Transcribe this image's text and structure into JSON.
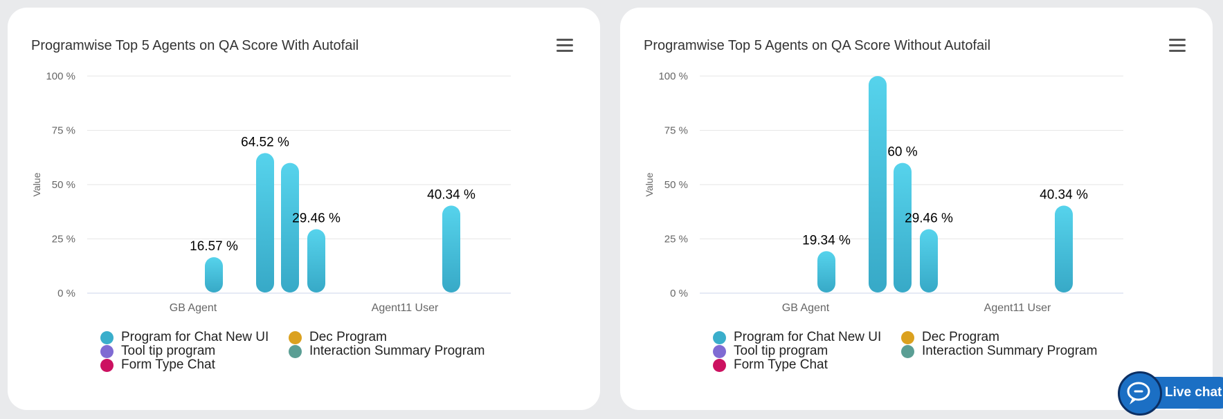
{
  "colors": {
    "bar_top": "#56d3ec",
    "bar_bottom": "#37a9c7",
    "grid": "#e6e6e6",
    "axis": "#ccd6eb"
  },
  "legend": [
    {
      "label": "Program for Chat New UI",
      "color": "#3aaecb"
    },
    {
      "label": "Dec Program",
      "color": "#dba11f"
    },
    {
      "label": "Tool tip program",
      "color": "#7f6bd3"
    },
    {
      "label": "Interaction Summary Program",
      "color": "#5a9e94"
    },
    {
      "label": "Form Type Chat",
      "color": "#cc1160"
    }
  ],
  "chart_data": [
    {
      "type": "bar",
      "title": "Programwise Top 5 Agents on QA Score With Autofail",
      "ylabel": "Value",
      "ylim": [
        0,
        100
      ],
      "yticks": [
        0,
        25,
        50,
        75,
        100
      ],
      "ytick_labels": [
        "0 %",
        "25 %",
        "50 %",
        "75 %",
        "100 %"
      ],
      "categories": [
        "GB Agent",
        "Agent11 User"
      ],
      "bars": [
        {
          "category": "GB Agent",
          "value": 16.57,
          "label": "16.57 %"
        },
        {
          "category": "GB Agent",
          "value": 64.52,
          "label": "64.52 %"
        },
        {
          "category": "GB Agent",
          "value": 60,
          "label": ""
        },
        {
          "category": "GB Agent",
          "value": 29.46,
          "label": "29.46 %"
        },
        {
          "category": "Agent11 User",
          "value": 40.34,
          "label": "40.34 %"
        }
      ]
    },
    {
      "type": "bar",
      "title": "Programwise Top 5 Agents on QA Score Without Autofail",
      "ylabel": "Value",
      "ylim": [
        0,
        100
      ],
      "yticks": [
        0,
        25,
        50,
        75,
        100
      ],
      "ytick_labels": [
        "0 %",
        "25 %",
        "50 %",
        "75 %",
        "100 %"
      ],
      "categories": [
        "GB Agent",
        "Agent11 User"
      ],
      "bars": [
        {
          "category": "GB Agent",
          "value": 19.34,
          "label": "19.34 %"
        },
        {
          "category": "GB Agent",
          "value": 100,
          "label": ""
        },
        {
          "category": "GB Agent",
          "value": 60,
          "label": "60 %"
        },
        {
          "category": "GB Agent",
          "value": 29.46,
          "label": "29.46 %"
        },
        {
          "category": "Agent11 User",
          "value": 40.34,
          "label": "40.34 %"
        }
      ]
    }
  ],
  "live_chat": {
    "label": "Live chat"
  }
}
